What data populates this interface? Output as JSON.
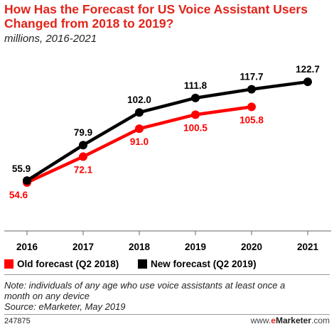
{
  "header": {
    "title": "How Has the Forecast for US Voice Assistant Users Changed from 2018 to 2019?",
    "subtitle": "millions, 2016-2021"
  },
  "chart_data": {
    "type": "line",
    "title": "How Has the Forecast for US Voice Assistant Users Changed from 2018 to 2019?",
    "subtitle": "millions, 2016-2021",
    "categories": [
      "2016",
      "2017",
      "2018",
      "2019",
      "2020",
      "2021"
    ],
    "series": [
      {
        "name": "Old forecast (Q2 2018)",
        "color": "#ff0000",
        "values": [
          54.6,
          72.1,
          91.0,
          100.5,
          105.8,
          null
        ],
        "labels": [
          "54.6",
          "72.1",
          "91.0",
          "100.5",
          "105.8",
          ""
        ]
      },
      {
        "name": "New forecast (Q2 2019)",
        "color": "#000000",
        "values": [
          55.9,
          79.9,
          102.0,
          111.8,
          117.7,
          122.7
        ],
        "labels": [
          "55.9",
          "79.9",
          "102.0",
          "111.8",
          "117.7",
          "122.7"
        ]
      }
    ],
    "ylim": [
      30,
      130
    ],
    "grid": false,
    "legend": "bottom"
  },
  "footer": {
    "note_line1": "Note: individuals of any age who use voice assistants at least once a",
    "note_line2": "month on any device",
    "source": "Source: eMarketer, May 2019",
    "chart_id": "247875",
    "brand_prefix": "www.",
    "brand_e": "e",
    "brand_rest": "Marketer",
    "brand_suffix": ".com"
  }
}
